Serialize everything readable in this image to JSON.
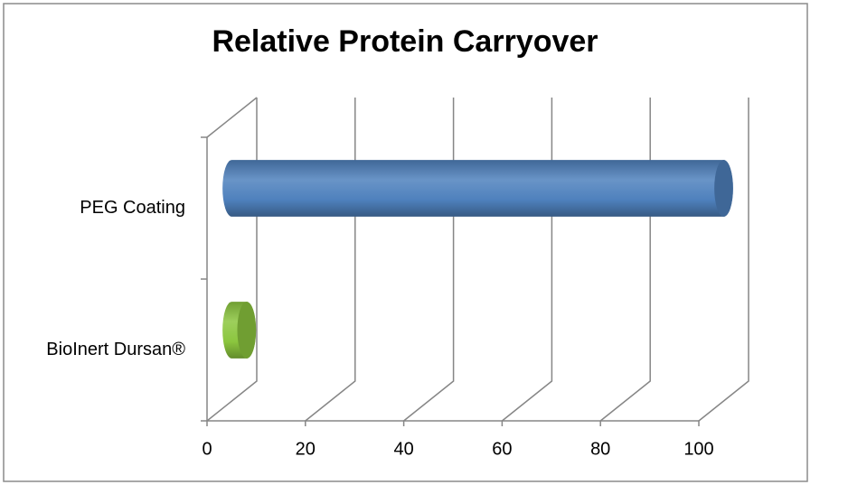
{
  "chart_data": {
    "type": "bar3d",
    "title": "Relative Protein Carryover",
    "categories": [
      "PEG Coating",
      "BioInert Dursan®"
    ],
    "values": [
      100,
      3
    ],
    "colors": [
      "#4f81bd",
      "#8cc63f"
    ],
    "xlim": [
      0,
      100
    ],
    "xticks": [
      0,
      20,
      40,
      60,
      80,
      100
    ],
    "grid": true
  }
}
